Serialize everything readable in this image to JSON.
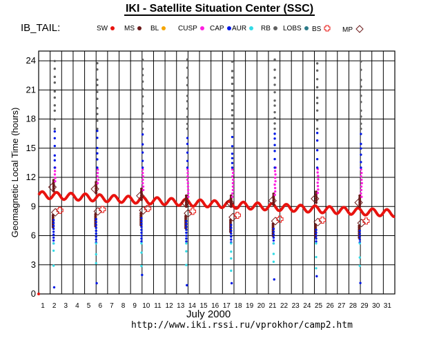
{
  "title": "IKI - Satellite Situation Center (SSC)",
  "subtitle": "IB_TAIL:",
  "legend": [
    {
      "label": "SW",
      "symbol": "dot",
      "color": "#e8130f"
    },
    {
      "label": "MS",
      "symbol": "dot",
      "color": "#6b1a1a"
    },
    {
      "label": "BL",
      "symbol": "dot",
      "color": "#f5a500"
    },
    {
      "label": "CUSP",
      "symbol": "dot",
      "color": "#ff1ee0"
    },
    {
      "label": "CAP",
      "symbol": "dot",
      "color": "#0018e6"
    },
    {
      "label": "AUR",
      "symbol": "dot",
      "color": "#33dbe6"
    },
    {
      "label": "RB",
      "symbol": "dot",
      "color": "#606060"
    },
    {
      "label": "LOBS",
      "symbol": "dot",
      "color": "#2c7a88"
    },
    {
      "label": "BS",
      "symbol": "plus",
      "color": "#e8130f"
    },
    {
      "label": "MP",
      "symbol": "diamond",
      "color": "#6b1a1a"
    }
  ],
  "footer": {
    "month_label": "July    2000",
    "url": "http://www.iki.rssi.ru/vprokhor/camp2.htm"
  },
  "chart_data": {
    "type": "scatter",
    "xlabel": "",
    "ylabel": "Geomagnetic Local Time (hours)",
    "xlim": [
      1,
      32
    ],
    "ylim": [
      0,
      25
    ],
    "x_ticks": [
      1,
      2,
      3,
      4,
      5,
      6,
      7,
      8,
      9,
      10,
      11,
      12,
      13,
      14,
      15,
      16,
      17,
      18,
      19,
      20,
      21,
      22,
      23,
      24,
      25,
      26,
      27,
      28,
      29,
      30,
      31
    ],
    "y_ticks": [
      0,
      3,
      6,
      9,
      12,
      15,
      18,
      21,
      24
    ],
    "grid": true,
    "sw_track": {
      "start": [
        1.0,
        10.2
      ],
      "end": [
        32.0,
        8.3
      ]
    },
    "passes": [
      {
        "x": 2.35,
        "upper_start": 10.6,
        "lower_start": 8.1
      },
      {
        "x": 6.05,
        "upper_start": 10.4,
        "lower_start": 8.2
      },
      {
        "x": 10.0,
        "upper_start": 9.7,
        "lower_start": 8.3
      },
      {
        "x": 13.9,
        "upper_start": 9.0,
        "lower_start": 8.0
      },
      {
        "x": 17.8,
        "upper_start": 9.0,
        "lower_start": 7.6
      },
      {
        "x": 21.5,
        "upper_start": 9.2,
        "lower_start": 7.2
      },
      {
        "x": 25.2,
        "upper_start": 9.4,
        "lower_start": 7.1
      },
      {
        "x": 29.0,
        "upper_start": 9.0,
        "lower_start": 7.0
      }
    ]
  }
}
